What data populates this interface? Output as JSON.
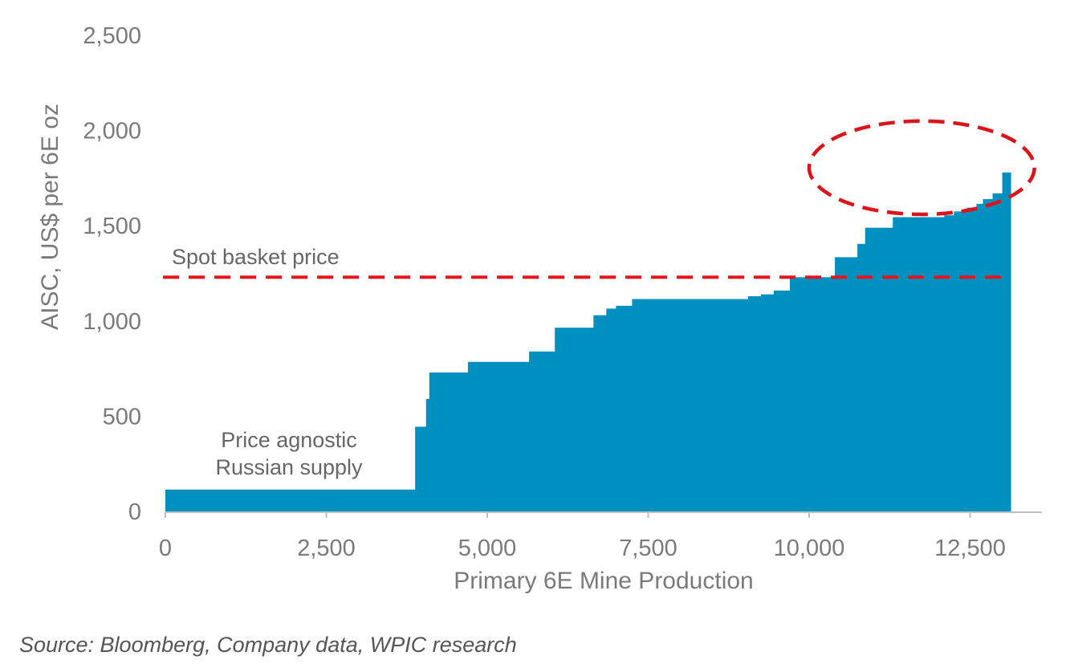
{
  "source_note": "Source: Bloomberg, Company data, WPIC research",
  "chart_data": {
    "type": "area",
    "title": "",
    "xlabel": "Primary 6E Mine Production",
    "ylabel": "AISC, US$ per 6E oz",
    "xlim": [
      0,
      13000
    ],
    "ylim": [
      0,
      2500
    ],
    "xticks": [
      0,
      2500,
      5000,
      7500,
      10000,
      12500
    ],
    "yticks": [
      0,
      500,
      1000,
      1500,
      2000,
      2500
    ],
    "xtick_labels": [
      "0",
      "2,500",
      "5,000",
      "7,500",
      "10,000",
      "12,500"
    ],
    "ytick_labels": [
      "0",
      "500",
      "1,000",
      "1,500",
      "2,000",
      "2,500"
    ],
    "grid": false,
    "legend": "none",
    "colors": {
      "area": "#0090bf",
      "spot_line": "#e8131b",
      "highlight_ellipse": "#d9141b"
    },
    "series": [
      {
        "step": "post",
        "x": [
          0,
          3880,
          4050,
          4100,
          4700,
          5400,
          5650,
          6050,
          6650,
          6850,
          7000,
          7250,
          9050,
          9250,
          9450,
          9700,
          10400,
          10750,
          10870,
          11300,
          11700,
          11950,
          12100,
          12250,
          12450,
          12600,
          12700,
          12850,
          13000
        ],
        "y": [
          115,
          445,
          590,
          730,
          785,
          785,
          840,
          965,
          1030,
          1065,
          1080,
          1115,
          1130,
          1140,
          1160,
          1230,
          1335,
          1405,
          1490,
          1545,
          1545,
          1545,
          1555,
          1575,
          1595,
          1615,
          1640,
          1670,
          1780
        ]
      }
    ],
    "reference_line": {
      "label": "Spot basket price",
      "y": 1230,
      "style": "dashed"
    },
    "annotations": [
      {
        "text_lines": [
          "Price agnostic",
          "Russian supply"
        ]
      }
    ],
    "highlight": {
      "shape": "dashed-ellipse",
      "x_range": [
        10000,
        13500
      ],
      "y_range": [
        1560,
        2050
      ]
    }
  }
}
